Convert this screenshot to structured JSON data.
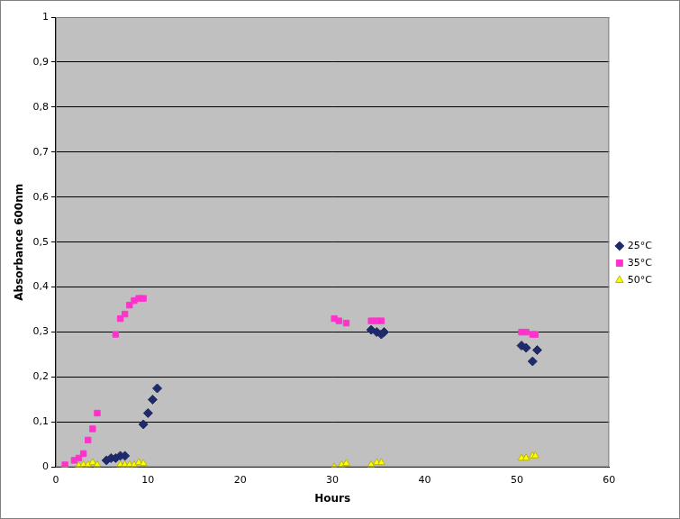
{
  "chart_data": {
    "type": "scatter",
    "x_label": "Hours",
    "y_label": "Absorbance 600nm",
    "xlim": [
      0,
      60
    ],
    "xticks": [
      0,
      10,
      20,
      30,
      40,
      50,
      60
    ],
    "ylim": [
      0,
      1
    ],
    "yticks": [
      0,
      {
        "value": 0.1,
        "label": "0,1"
      },
      {
        "value": 0.2,
        "label": "0,2"
      },
      {
        "value": 0.3,
        "label": "0,3"
      },
      {
        "value": 0.4,
        "label": "0,4"
      },
      {
        "value": 0.5,
        "label": "0,5"
      },
      {
        "value": 0.6,
        "label": "0,6"
      },
      {
        "value": 0.7,
        "label": "0,7"
      },
      {
        "value": 0.8,
        "label": "0,8"
      },
      {
        "value": 0.9,
        "label": "0,9"
      },
      1
    ],
    "grid": true,
    "legend": "right",
    "series": [
      {
        "name": "25°C",
        "color": "#1f2a6b",
        "marker": "diamond",
        "x": [
          5.5,
          6,
          6.5,
          7,
          7.5,
          9.5,
          10,
          10.5,
          11,
          34.2,
          34.8,
          35.3,
          35.6,
          50.5,
          51,
          51.7,
          52.2
        ],
        "values": [
          0.015,
          0.02,
          0.02,
          0.025,
          0.025,
          0.095,
          0.12,
          0.15,
          0.175,
          0.305,
          0.3,
          0.295,
          0.3,
          0.27,
          0.265,
          0.235,
          0.26
        ]
      },
      {
        "name": "35°C",
        "color": "#ff33cc",
        "marker": "square",
        "x": [
          1,
          2,
          2.5,
          3,
          3.5,
          4,
          4.5,
          6.5,
          7,
          7.5,
          8,
          8.5,
          9,
          9.5,
          30.2,
          30.7,
          31.5,
          34.2,
          34.8,
          35.3,
          50.5,
          51,
          51.7,
          52
        ],
        "values": [
          0.005,
          0.015,
          0.02,
          0.03,
          0.06,
          0.085,
          0.12,
          0.295,
          0.33,
          0.34,
          0.36,
          0.37,
          0.375,
          0.375,
          0.33,
          0.325,
          0.32,
          0.325,
          0.325,
          0.325,
          0.3,
          0.3,
          0.295,
          0.295
        ]
      },
      {
        "name": "50°C",
        "color": "#ffff00",
        "marker": "triangle",
        "x": [
          1,
          2.5,
          3,
          3.5,
          4,
          4.5,
          7,
          7.5,
          8,
          8.5,
          9,
          9.5,
          30.2,
          31,
          31.5,
          34.2,
          34.8,
          35.3,
          50.5,
          51,
          51.7,
          52
        ],
        "values": [
          0.002,
          0.003,
          0.005,
          0.005,
          0.01,
          0.005,
          0.005,
          0.005,
          0.005,
          0.005,
          0.01,
          0.008,
          0,
          0.005,
          0.008,
          0.005,
          0.01,
          0.01,
          0.02,
          0.02,
          0.025,
          0.025
        ]
      }
    ]
  }
}
